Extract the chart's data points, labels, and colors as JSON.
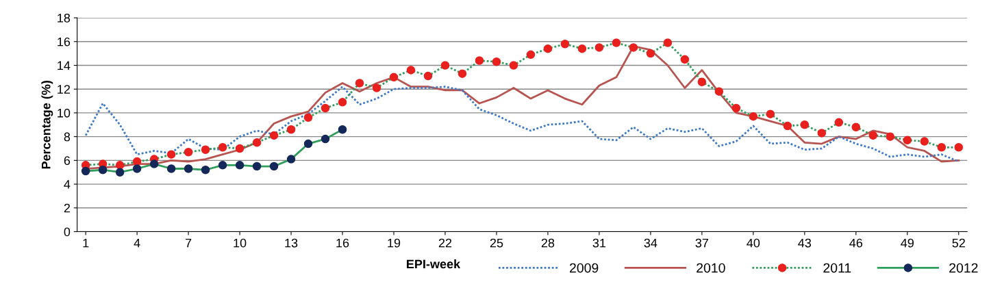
{
  "chart_data": {
    "type": "line",
    "xlabel": "EPI-week",
    "ylabel": "Percentage (%)",
    "x": [
      1,
      2,
      3,
      4,
      5,
      6,
      7,
      8,
      9,
      10,
      11,
      12,
      13,
      14,
      15,
      16,
      17,
      18,
      19,
      20,
      21,
      22,
      23,
      24,
      25,
      26,
      27,
      28,
      29,
      30,
      31,
      32,
      33,
      34,
      35,
      36,
      37,
      38,
      39,
      40,
      41,
      42,
      43,
      44,
      45,
      46,
      47,
      48,
      49,
      50,
      51,
      52
    ],
    "xlim": [
      0.5,
      52.5
    ],
    "xticks": [
      1,
      4,
      7,
      10,
      13,
      16,
      19,
      22,
      25,
      28,
      31,
      34,
      37,
      40,
      43,
      46,
      49,
      52
    ],
    "ylim": [
      0,
      18
    ],
    "yticks": [
      0,
      2,
      4,
      6,
      8,
      10,
      12,
      14,
      16,
      18
    ],
    "grid": "y",
    "legend": "bottom",
    "series": [
      {
        "name": "2009",
        "color": "#3c78c8",
        "line_style": "dotted",
        "marker": "none",
        "values": [
          8.1,
          10.8,
          9.0,
          6.5,
          6.8,
          6.6,
          7.8,
          7.0,
          6.9,
          8.0,
          8.5,
          8.2,
          9.3,
          9.9,
          11.0,
          12.2,
          10.7,
          11.2,
          12.0,
          12.1,
          12.1,
          12.2,
          11.9,
          10.3,
          9.8,
          9.1,
          8.5,
          9.0,
          9.1,
          9.3,
          7.8,
          7.7,
          8.8,
          7.8,
          8.7,
          8.4,
          8.7,
          7.2,
          7.6,
          8.9,
          7.4,
          7.5,
          6.9,
          7.0,
          8.0,
          7.4,
          7.0,
          6.3,
          6.5,
          6.3,
          6.5,
          5.9
        ]
      },
      {
        "name": "2010",
        "color": "#b85450",
        "line_style": "solid",
        "marker": "none",
        "values": [
          5.3,
          5.4,
          5.5,
          5.7,
          5.7,
          6.0,
          5.9,
          6.1,
          6.5,
          6.9,
          7.5,
          9.1,
          9.7,
          10.1,
          11.7,
          12.5,
          11.8,
          12.5,
          13.0,
          12.2,
          12.2,
          11.9,
          11.9,
          10.8,
          11.3,
          12.1,
          11.2,
          11.9,
          11.2,
          10.7,
          12.3,
          13.0,
          15.6,
          15.3,
          14.0,
          12.1,
          13.6,
          11.7,
          10.0,
          9.7,
          9.3,
          8.9,
          7.5,
          7.4,
          8.0,
          7.8,
          8.5,
          8.2,
          7.1,
          6.8,
          5.9,
          6.0
        ]
      },
      {
        "name": "2011",
        "color": "#2e9e5a",
        "line_style": "dotted",
        "marker": "circle",
        "colors": [
          "#e8201e",
          "#e8201e",
          "#e8201e",
          "#e8201e",
          "#e8201e",
          "#e8201e",
          "#e8201e",
          "#e8201e",
          "#e8201e",
          "#e8201e",
          "#e8201e",
          "#e8201e",
          "#e8201e",
          "#e8201e",
          "#e8201e",
          "#e8201e",
          "#e8201e",
          "#e8201e",
          "#e8201e",
          "#e8201e",
          "#e8201e",
          "#e8201e",
          "#e8201e",
          "#e8201e",
          "#e8201e",
          "#e8201e",
          "#e8201e",
          "#e8201e",
          "#e8201e",
          "#e8201e",
          "#e8201e",
          "#e8201e",
          "#e8201e",
          "#e8201e",
          "#e8201e",
          "#e8201e",
          "#e8201e",
          "#e8201e",
          "#e8201e",
          "#e8201e",
          "#e8201e",
          "#e8201e",
          "#e8201e",
          "#e8201e",
          "#e8201e",
          "#e8201e",
          "#e8201e",
          "#e8201e",
          "#e8201e",
          "#e8201e",
          "#e8201e",
          "#e8201e"
        ],
        "values": [
          5.6,
          5.7,
          5.6,
          5.9,
          6.1,
          6.5,
          6.7,
          6.9,
          7.1,
          7.0,
          7.5,
          8.1,
          8.6,
          9.6,
          10.4,
          10.9,
          12.5,
          12.1,
          13.0,
          13.6,
          13.1,
          14.0,
          13.3,
          14.4,
          14.3,
          14.0,
          14.9,
          15.4,
          15.8,
          15.4,
          15.5,
          15.9,
          15.5,
          15.0,
          15.9,
          14.5,
          12.6,
          11.8,
          10.4,
          9.7,
          9.9,
          8.9,
          9.0,
          8.3,
          9.2,
          8.8,
          8.1,
          8.0,
          7.7,
          7.6,
          7.1,
          7.1
        ]
      },
      {
        "name": "2012",
        "color": "#2e9e5a",
        "line_style": "solid",
        "marker": "circle",
        "colors": [
          "#14285a",
          "#14285a",
          "#14285a",
          "#14285a",
          "#14285a",
          "#14285a",
          "#14285a",
          "#14285a",
          "#14285a",
          "#14285a",
          "#14285a",
          "#14285a",
          "#14285a",
          "#14285a",
          "#14285a",
          "#14285a",
          null,
          null,
          null,
          null,
          null,
          null,
          null,
          null,
          null,
          null,
          null,
          null,
          null,
          null,
          null,
          null,
          null,
          null,
          null,
          null,
          null,
          null,
          null,
          null,
          null,
          null,
          null,
          null,
          null,
          null,
          null,
          null,
          null,
          null,
          null,
          null
        ],
        "values": [
          5.1,
          5.2,
          5.0,
          5.3,
          5.7,
          5.3,
          5.3,
          5.2,
          5.6,
          5.6,
          5.5,
          5.5,
          6.1,
          7.4,
          7.8,
          8.6,
          null,
          null,
          null,
          null,
          null,
          null,
          null,
          null,
          null,
          null,
          null,
          null,
          null,
          null,
          null,
          null,
          null,
          null,
          null,
          null,
          null,
          null,
          null,
          null,
          null,
          null,
          null,
          null,
          null,
          null,
          null,
          null,
          null,
          null,
          null,
          null
        ]
      }
    ]
  }
}
